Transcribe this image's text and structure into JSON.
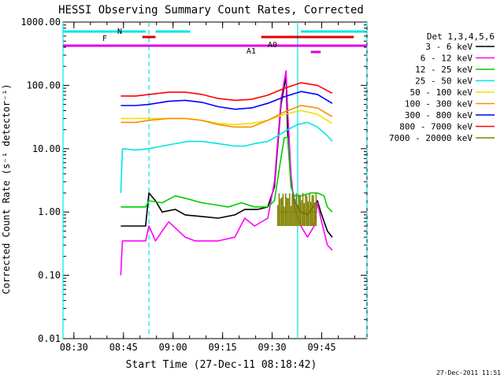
{
  "chart_data": {
    "type": "line",
    "title": "HESSI Observing Summary Count Rates, Corrected",
    "xlabel": "Start Time (27-Dec-11 08:18:42)",
    "ylabel": "Corrected Count Rate (s⁻¹ detector⁻¹)",
    "yscale": "log",
    "ylim": [
      0.01,
      1000
    ],
    "xlim_minutes": [
      8.0,
      100.0
    ],
    "grid": false,
    "legend_position": "right",
    "x_ticks": [
      "08:30",
      "08:45",
      "09:00",
      "09:15",
      "09:30",
      "09:45"
    ],
    "y_ticks": [
      "0.01",
      "0.10",
      "1.00",
      "10.00",
      "100.00",
      "1000.00"
    ],
    "legend_title": "Det 1,3,4,5,6",
    "timestamp": "27-Dec-2011 11:51",
    "annotations": [
      "F",
      "N",
      "A0",
      "A1"
    ],
    "vertical_lines_minutes": [
      8.0,
      34.0,
      79.0,
      100.0
    ],
    "series": [
      {
        "name": "3 - 6 keV",
        "color": "#000000",
        "x": [
          25.5,
          28,
          33,
          34,
          36,
          38,
          42,
          45,
          50,
          55,
          60,
          63,
          67,
          70,
          72,
          74,
          75.5,
          76,
          77,
          78,
          80,
          82,
          85,
          86,
          88,
          89.5
        ],
        "y": [
          0.6,
          0.6,
          0.6,
          2.0,
          1.5,
          1.0,
          1.1,
          0.9,
          0.85,
          0.8,
          0.9,
          1.1,
          1.1,
          1.2,
          2.5,
          50,
          140,
          18,
          3.0,
          1.5,
          1.0,
          0.9,
          1.5,
          1.0,
          0.5,
          0.4
        ]
      },
      {
        "name": "6 - 12 keV",
        "color": "#ff00ff",
        "x": [
          25.5,
          26,
          28,
          33,
          34,
          36,
          38,
          40,
          43,
          45,
          48,
          52,
          55,
          60,
          63,
          66,
          70,
          72,
          74,
          75.5,
          76,
          77,
          78,
          80,
          82,
          84,
          85,
          86,
          88,
          89.5
        ],
        "y": [
          0.1,
          0.35,
          0.35,
          0.35,
          0.6,
          0.35,
          0.5,
          0.7,
          0.5,
          0.4,
          0.35,
          0.35,
          0.35,
          0.4,
          0.8,
          0.6,
          0.8,
          3.0,
          60,
          170,
          40,
          4.0,
          1.2,
          0.6,
          0.4,
          0.6,
          1.4,
          0.8,
          0.3,
          0.25
        ]
      },
      {
        "name": "12 - 25 keV",
        "color": "#00cc00",
        "x": [
          25.5,
          28,
          33,
          34,
          38,
          42,
          46,
          50,
          54,
          58,
          62,
          66,
          70,
          72,
          73.5,
          75,
          76,
          77,
          78,
          80,
          83,
          85,
          87,
          88,
          89.5
        ],
        "y": [
          1.2,
          1.2,
          1.2,
          1.5,
          1.4,
          1.8,
          1.6,
          1.4,
          1.3,
          1.2,
          1.4,
          1.2,
          1.2,
          1.5,
          5.0,
          15,
          15,
          2.5,
          1.8,
          1.8,
          2.0,
          2.0,
          1.8,
          1.2,
          1.0
        ]
      },
      {
        "name": "25 - 50 keV",
        "color": "#00e5e5",
        "x": [
          25.5,
          26,
          30,
          34,
          38,
          42,
          46,
          50,
          55,
          60,
          63,
          66,
          70,
          73,
          76,
          79,
          82,
          85,
          88,
          89.5
        ],
        "y": [
          2.0,
          10,
          9.5,
          10,
          11,
          12,
          13,
          13,
          12,
          11,
          11,
          12,
          13,
          16,
          20,
          24,
          26,
          22,
          16,
          13
        ]
      },
      {
        "name": "50 - 100 keV",
        "color": "#e5e500",
        "x": [
          25.5,
          30,
          34,
          40,
          45,
          50,
          55,
          60,
          65,
          70,
          75,
          80,
          85,
          89.5
        ],
        "y": [
          30,
          30,
          30,
          30,
          30,
          28,
          25,
          24,
          25,
          28,
          35,
          40,
          35,
          25
        ]
      },
      {
        "name": "100 - 300 keV",
        "color": "#ff8c00",
        "x": [
          25.5,
          30,
          34,
          40,
          45,
          50,
          55,
          60,
          65,
          70,
          75,
          80,
          85,
          89.5
        ],
        "y": [
          26,
          26,
          28,
          30,
          30,
          28,
          24,
          22,
          22,
          28,
          38,
          48,
          44,
          32
        ]
      },
      {
        "name": "300 - 800 keV",
        "color": "#0000ff",
        "x": [
          25.5,
          30,
          34,
          40,
          45,
          50,
          55,
          60,
          65,
          70,
          75,
          80,
          85,
          89.5
        ],
        "y": [
          48,
          48,
          50,
          56,
          58,
          54,
          46,
          42,
          44,
          52,
          66,
          80,
          72,
          52
        ]
      },
      {
        "name": "800 - 7000 keV",
        "color": "#ff0000",
        "x": [
          25.5,
          30,
          34,
          40,
          45,
          50,
          55,
          60,
          65,
          70,
          75,
          80,
          85,
          89.5
        ],
        "y": [
          68,
          68,
          72,
          78,
          78,
          72,
          62,
          58,
          60,
          70,
          90,
          110,
          100,
          75
        ]
      },
      {
        "name": "7000 - 20000 keV",
        "color": "#808000",
        "x": [
          73,
          75,
          77,
          79,
          81,
          83,
          85
        ],
        "y": [
          1.0,
          1.0,
          1.0,
          1.0,
          1.0,
          1.0,
          1.0
        ]
      }
    ]
  }
}
